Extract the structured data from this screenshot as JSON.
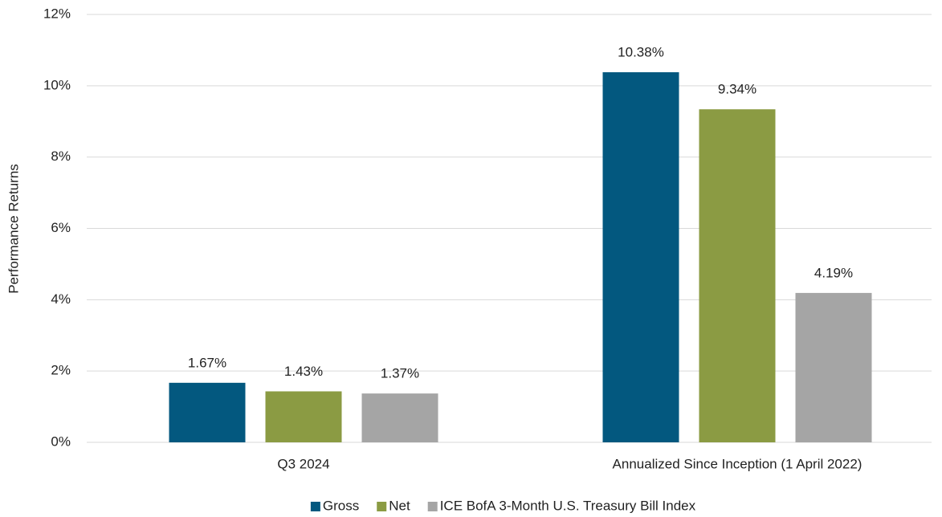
{
  "chart_data": {
    "type": "bar",
    "categories": [
      "Q3 2024",
      "Annualized Since Inception (1 April 2022)"
    ],
    "series": [
      {
        "name": "Gross",
        "color": "#03587f",
        "values": [
          1.67,
          10.38
        ],
        "value_labels": [
          "1.67%",
          "10.38%"
        ]
      },
      {
        "name": "Net",
        "color": "#8b9b43",
        "values": [
          1.43,
          9.34
        ],
        "value_labels": [
          "1.43%",
          "9.34%"
        ]
      },
      {
        "name": "ICE BofA 3-Month U.S. Treasury Bill Index",
        "color": "#a5a5a5",
        "values": [
          1.37,
          4.19
        ],
        "value_labels": [
          "1.37%",
          "4.19%"
        ]
      }
    ],
    "y_label": "Performance Returns",
    "ylim": [
      0,
      12
    ],
    "yticks": [
      {
        "value": 0,
        "label": "0%"
      },
      {
        "value": 2,
        "label": "2%"
      },
      {
        "value": 4,
        "label": "4%"
      },
      {
        "value": 6,
        "label": "6%"
      },
      {
        "value": 8,
        "label": "8%"
      },
      {
        "value": 10,
        "label": "10%"
      },
      {
        "value": 12,
        "label": "12%"
      }
    ],
    "grid": true,
    "legend": "bottom"
  }
}
